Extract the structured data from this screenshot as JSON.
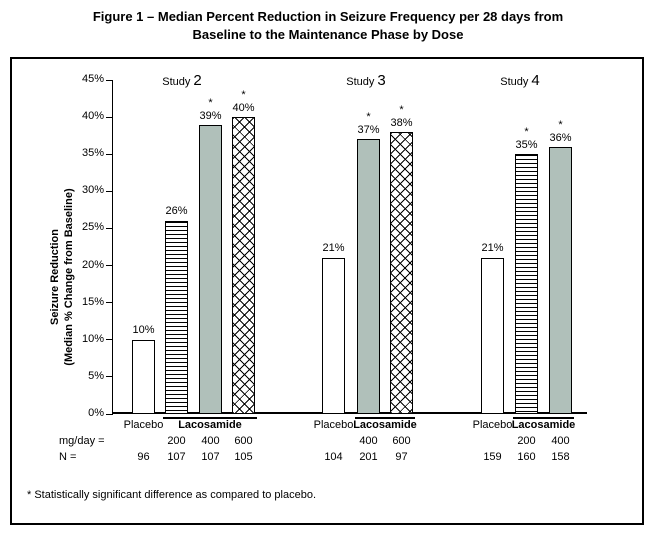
{
  "title": {
    "line1": "Figure 1 – Median Percent Reduction in Seizure Frequency per 28 days from",
    "line2": "Baseline to the Maintenance Phase by Dose"
  },
  "y_axis": {
    "label_line1": "Seizure Reduction",
    "label_line2": "(Median % Change from Baseline)",
    "ticks": [
      "45%",
      "40%",
      "35%",
      "30%",
      "25%",
      "20%",
      "15%",
      "10%",
      "5%",
      "0%"
    ]
  },
  "x_axis": {
    "dose_row_label": "mg/day =",
    "n_row_label": "N ="
  },
  "footnote": "* Statistically significant difference as compared to placebo.",
  "colors": {
    "solid_bar": "#b0c0ba",
    "axis": "#000000",
    "background": "#ffffff"
  },
  "chart_data": {
    "type": "bar",
    "title": "Figure 1 – Median Percent Reduction in Seizure Frequency per 28 days from Baseline to the Maintenance Phase by Dose",
    "ylabel": "Seizure Reduction (Median % Change from Baseline)",
    "ylim": [
      0,
      45
    ],
    "ytick_interval": 5,
    "unit": "%",
    "grid": false,
    "legend": "none",
    "significance_marker": "*",
    "groups": [
      {
        "name": "Study 2",
        "bars": [
          {
            "category": "Placebo",
            "dose_mg_day": null,
            "n": 96,
            "value_pct": 10,
            "label": "10%",
            "significant": false,
            "pattern": "plain"
          },
          {
            "category": "Lacosamide",
            "dose_mg_day": 200,
            "n": 107,
            "value_pct": 26,
            "label": "26%",
            "significant": false,
            "pattern": "hstripes"
          },
          {
            "category": "Lacosamide",
            "dose_mg_day": 400,
            "n": 107,
            "value_pct": 39,
            "label": "39%",
            "significant": true,
            "pattern": "solid"
          },
          {
            "category": "Lacosamide",
            "dose_mg_day": 600,
            "n": 105,
            "value_pct": 40,
            "label": "40%",
            "significant": true,
            "pattern": "crosshatch"
          }
        ]
      },
      {
        "name": "Study 3",
        "bars": [
          {
            "category": "Placebo",
            "dose_mg_day": null,
            "n": 104,
            "value_pct": 21,
            "label": "21%",
            "significant": false,
            "pattern": "plain"
          },
          {
            "category": "Lacosamide",
            "dose_mg_day": 400,
            "n": 201,
            "value_pct": 37,
            "label": "37%",
            "significant": true,
            "pattern": "solid"
          },
          {
            "category": "Lacosamide",
            "dose_mg_day": 600,
            "n": 97,
            "value_pct": 38,
            "label": "38%",
            "significant": true,
            "pattern": "crosshatch"
          }
        ]
      },
      {
        "name": "Study 4",
        "bars": [
          {
            "category": "Placebo",
            "dose_mg_day": null,
            "n": 159,
            "value_pct": 21,
            "label": "21%",
            "significant": false,
            "pattern": "plain"
          },
          {
            "category": "Lacosamide",
            "dose_mg_day": 200,
            "n": 160,
            "value_pct": 35,
            "label": "35%",
            "significant": true,
            "pattern": "hstripes"
          },
          {
            "category": "Lacosamide",
            "dose_mg_day": 400,
            "n": 158,
            "value_pct": 36,
            "label": "36%",
            "significant": true,
            "pattern": "solid"
          }
        ]
      }
    ]
  }
}
